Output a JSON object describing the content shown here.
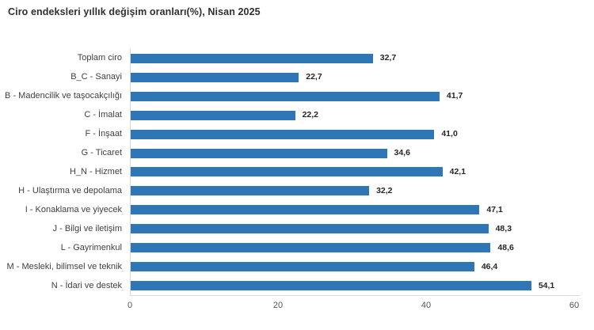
{
  "chart_data": {
    "type": "bar",
    "orientation": "horizontal",
    "title": "Ciro endeksleri yıllık değişim oranları(%), Nisan 2025",
    "categories": [
      "Toplam ciro",
      "B_C - Sanayi",
      "B - Madencilik ve taşocakçılığı",
      "C - İmalat",
      "F - İnşaat",
      "G - Ticaret",
      "H_N - Hizmet",
      "H - Ulaştırma ve depolama",
      "I - Konaklama ve yiyecek",
      "J - Bilgi ve iletişim",
      "L - Gayrimenkul",
      "M - Mesleki, bilimsel ve teknik",
      "N - İdari ve destek"
    ],
    "values": [
      32.7,
      22.7,
      41.7,
      22.2,
      41.0,
      34.6,
      42.1,
      32.2,
      47.1,
      48.3,
      48.6,
      46.4,
      54.1
    ],
    "value_labels": [
      "32,7",
      "22,7",
      "41,7",
      "22,2",
      "41,0",
      "34,6",
      "42,1",
      "32,2",
      "47,1",
      "48,3",
      "48,6",
      "46,4",
      "54,1"
    ],
    "xlim": [
      0,
      60
    ],
    "x_ticks": [
      0,
      20,
      40,
      60
    ],
    "grid": false,
    "legend": "none",
    "bar_color": "#2e76b5",
    "axis_line_color": "#d9d9d9",
    "label_color": "#3f3f3f",
    "value_label_color": "#262626",
    "background_color": "#ffffff"
  }
}
